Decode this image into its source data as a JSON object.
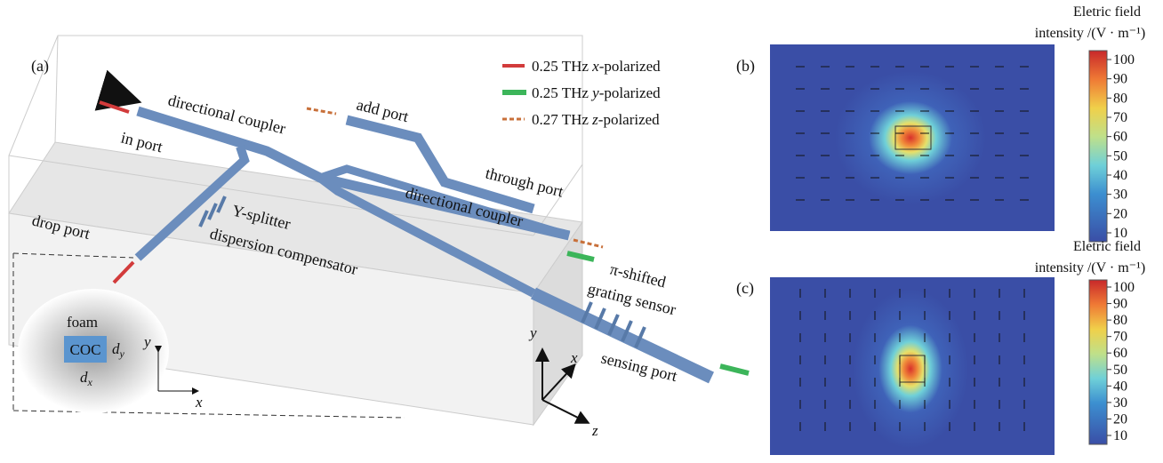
{
  "panels": [
    "(a)",
    "(b)",
    "(c)"
  ],
  "legend": [
    {
      "prefix": "0.25 THz ",
      "axis": "x",
      "suffix": "-polarized"
    },
    {
      "prefix": "0.25 THz ",
      "axis": "y",
      "suffix": "-polarized"
    },
    {
      "prefix": "0.27 THz ",
      "axis": "z",
      "suffix": "-polarized"
    }
  ],
  "labels": [
    "in port",
    "directional coupler",
    "add port",
    "through port",
    "directional coupler",
    "drop port",
    "Y-splitter",
    "dispersion compensator",
    "π-shifted",
    "grating sensor",
    "sensing port"
  ],
  "inset": {
    "material": "foam",
    "core": "COC",
    "dy": "d",
    "dy_sub": "y",
    "dx": "d",
    "dx_sub": "x",
    "y_axis": "y",
    "x_axis": "x"
  },
  "axes3d": {
    "y": "y",
    "x": "x",
    "z": "z"
  },
  "colorbar": {
    "title_line1": "Eletric field",
    "title_line2": "intensity /(V · m⁻¹)",
    "ticks": [
      10,
      20,
      30,
      40,
      50,
      60,
      70,
      80,
      90,
      100
    ]
  }
}
